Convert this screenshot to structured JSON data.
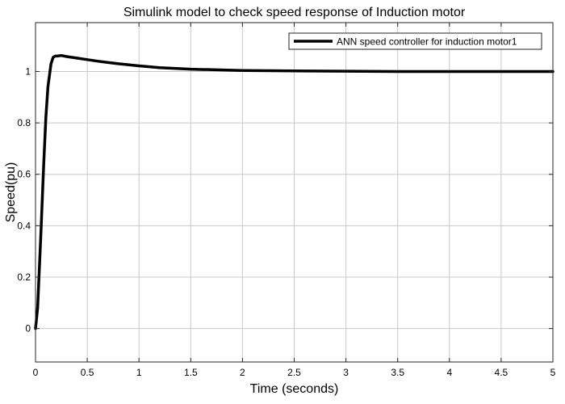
{
  "chart_data": {
    "type": "line",
    "title": "Simulink model to check speed response of Induction motor",
    "xlabel": "Time (seconds)",
    "ylabel": "Speed(pu)",
    "xlim": [
      0,
      5
    ],
    "ylim": [
      -0.13,
      1.19
    ],
    "xticks": [
      0,
      0.5,
      1,
      1.5,
      2,
      2.5,
      3,
      3.5,
      4,
      4.5,
      5
    ],
    "xtick_labels": [
      "0",
      "0.5",
      "1",
      "1.5",
      "2",
      "2.5",
      "3",
      "3.5",
      "4",
      "4.5",
      "5"
    ],
    "yticks": [
      0,
      0.2,
      0.4,
      0.6,
      0.8,
      1
    ],
    "ytick_labels": [
      "0",
      "0.2",
      "0.4",
      "0.6",
      "0.8",
      "1"
    ],
    "grid": true,
    "legend_position": "top-right",
    "line_color": "#000000",
    "series": [
      {
        "name": "ANN speed controller for induction motor1",
        "x": [
          0,
          0.02,
          0.05,
          0.08,
          0.1,
          0.12,
          0.15,
          0.17,
          0.19,
          0.21,
          0.25,
          0.3,
          0.4,
          0.5,
          0.6,
          0.8,
          1.0,
          1.2,
          1.5,
          2.0,
          2.5,
          3.0,
          3.5,
          4.0,
          4.5,
          5.0
        ],
        "y": [
          0,
          0.08,
          0.35,
          0.65,
          0.82,
          0.94,
          1.03,
          1.055,
          1.06,
          1.06,
          1.062,
          1.058,
          1.052,
          1.046,
          1.04,
          1.03,
          1.022,
          1.015,
          1.009,
          1.004,
          1.002,
          1.001,
          1.0,
          1.0,
          1.0,
          1.0
        ]
      }
    ]
  }
}
